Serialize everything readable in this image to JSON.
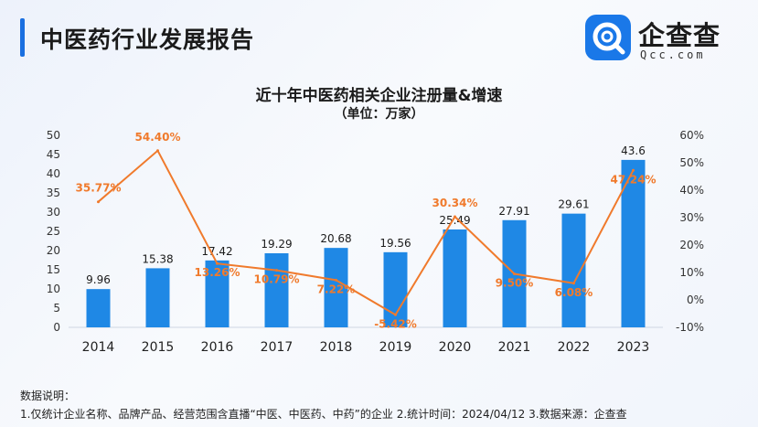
{
  "header": {
    "title": "中医药行业发展报告"
  },
  "logo": {
    "name": "企查查",
    "domain": "Qcc.com",
    "icon": "qcc-logo-icon"
  },
  "chart_data": {
    "type": "bar+line",
    "title": "近十年中医药相关企业注册量&增速",
    "subtitle": "（单位：万家）",
    "categories": [
      "2014",
      "2015",
      "2016",
      "2017",
      "2018",
      "2019",
      "2020",
      "2021",
      "2022",
      "2023"
    ],
    "bar_series": {
      "values": [
        9.96,
        15.38,
        17.42,
        19.29,
        20.68,
        19.56,
        25.49,
        27.91,
        29.61,
        43.6
      ],
      "labels": [
        "9.96",
        "15.38",
        "17.42",
        "19.29",
        "20.68",
        "19.56",
        "25.49",
        "27.91",
        "29.61",
        "43.6"
      ],
      "color": "#1f88e5"
    },
    "line_series": {
      "values": [
        35.77,
        54.4,
        13.26,
        10.79,
        7.22,
        -5.42,
        30.34,
        9.5,
        6.08,
        47.24
      ],
      "labels": [
        "35.77%",
        "54.40%",
        "13.26%",
        "10.79%",
        "7.22%",
        "-5.42%",
        "30.34%",
        "9.50%",
        "6.08%",
        "47.24%"
      ],
      "color": "#f07a2c"
    },
    "y_left": {
      "ylim": [
        0,
        50
      ],
      "ticks": [
        "0",
        "5",
        "10",
        "15",
        "20",
        "25",
        "30",
        "35",
        "40",
        "45",
        "50"
      ]
    },
    "y_right": {
      "ylim": [
        -10,
        60
      ],
      "ticks": [
        "-10%",
        "0%",
        "10%",
        "20%",
        "30%",
        "40%",
        "50%",
        "60%"
      ]
    },
    "grid": false,
    "legend": "none"
  },
  "notes": {
    "title": "数据说明：",
    "line": "1.仅统计企业名称、品牌产品、经营范围含直播“中医、中医药、中药”的企业  2.统计时间：2024/04/12  3.数据来源：企查查"
  }
}
